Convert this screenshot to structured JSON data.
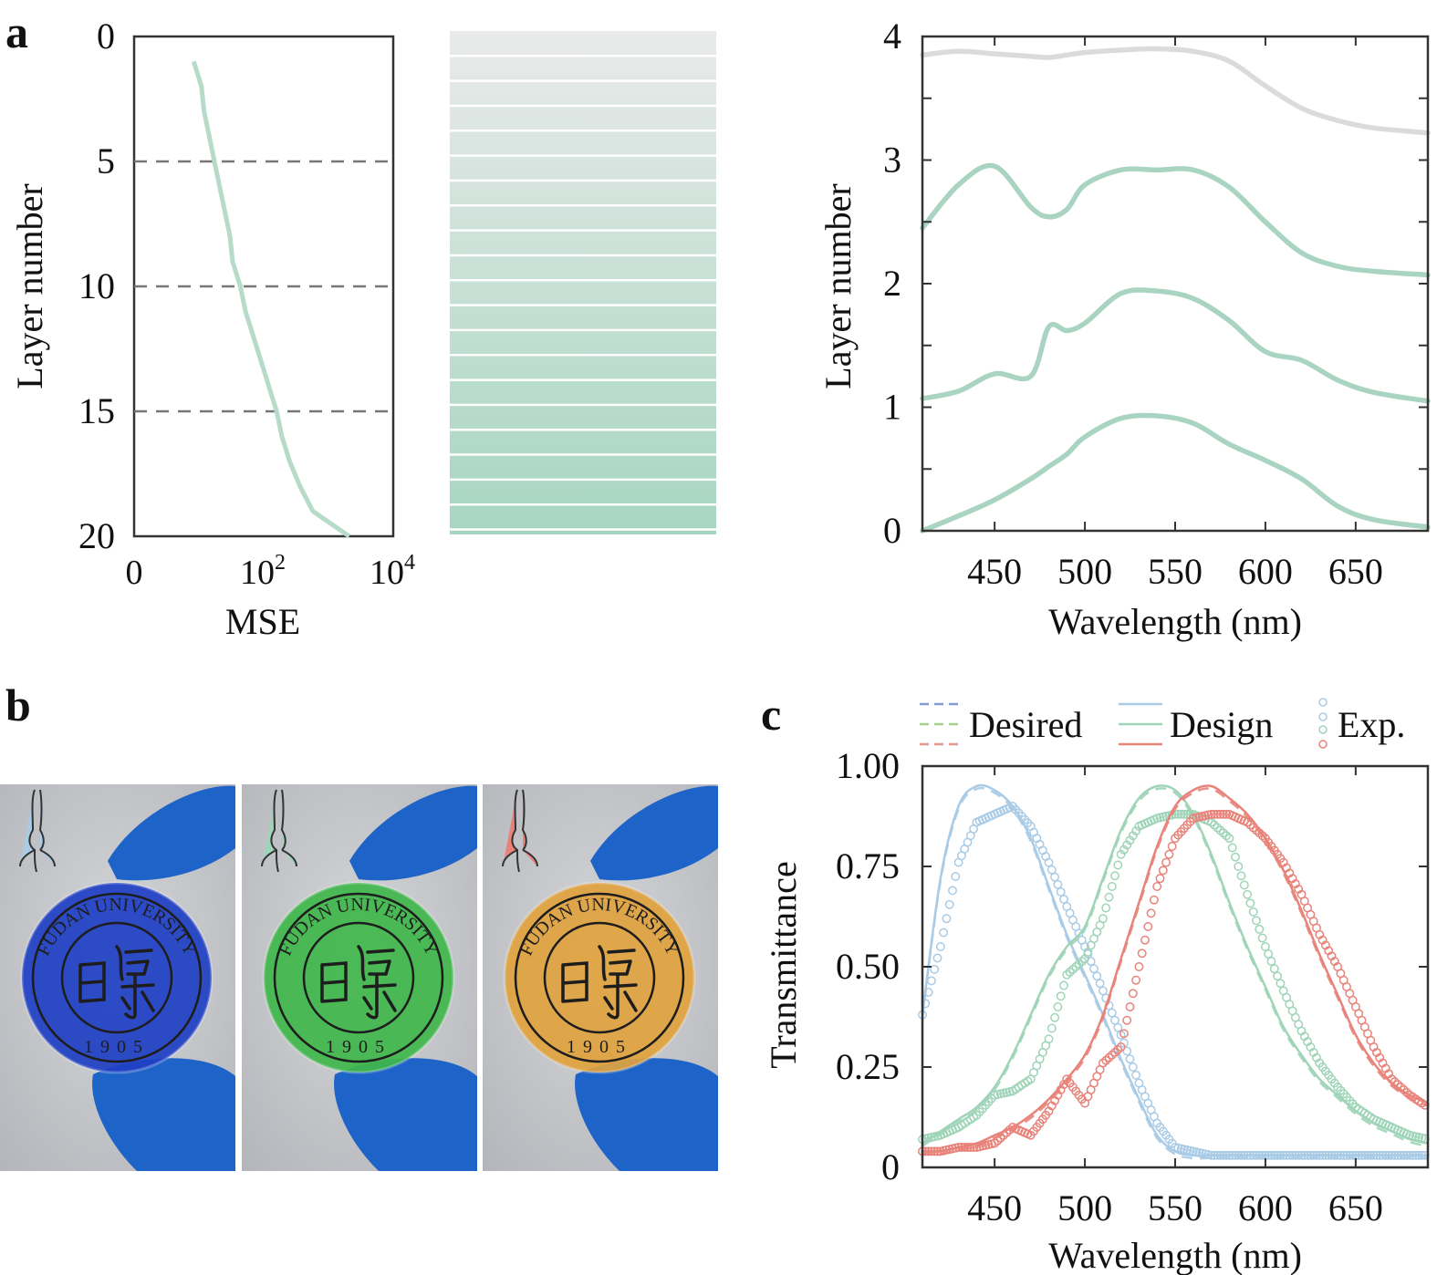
{
  "panels": {
    "a": "a",
    "b": "b",
    "c": "c"
  },
  "colors": {
    "curve_a": "#b6dcc9",
    "layer_top": "#eaeceb",
    "layer_bottom": "#a6d6c1",
    "stack_gray": "#d9dcdb",
    "stack_green": "#a9d4c1",
    "blue": "#a9cbe6",
    "green": "#9fd4b8",
    "red": "#e8837a",
    "glove": "#1e63c8",
    "bg_photo": "#c9cbcf"
  },
  "chart_data": [
    {
      "type": "line",
      "id": "mse_vs_layer",
      "xlabel": "MSE",
      "ylabel": "Layer number",
      "x_scale": "log-like",
      "x_ticks": [
        "0",
        "10^2",
        "10^4"
      ],
      "y_ticks": [
        "0",
        "5",
        "10",
        "15",
        "20"
      ],
      "ylim": [
        0,
        20
      ],
      "y_inverted": true,
      "dashed_gridlines_at": [
        5,
        10,
        15
      ],
      "series": [
        {
          "x": [
            0.23,
            0.26,
            0.27,
            0.29,
            0.31,
            0.33,
            0.35,
            0.37,
            0.38,
            0.41,
            0.43,
            0.46,
            0.49,
            0.52,
            0.55,
            0.57,
            0.6,
            0.64,
            0.69,
            0.76,
            0.83
          ],
          "y": [
            1,
            2,
            3,
            4,
            5,
            6,
            7,
            8,
            9,
            10,
            11,
            12,
            13,
            14,
            15,
            16,
            17,
            18,
            19,
            19.5,
            20
          ]
        }
      ]
    },
    {
      "type": "heatmap",
      "id": "layer_stack",
      "layers": 20
    },
    {
      "type": "line",
      "id": "stacked_spectra",
      "xlabel": "Wavelength (nm)",
      "ylabel": "Layer number",
      "x_ticks": [
        450,
        500,
        550,
        600,
        650
      ],
      "y_ticks": [
        0,
        1,
        2,
        3,
        4
      ],
      "xlim": [
        410,
        690
      ],
      "ylim": [
        0,
        4
      ],
      "x": [
        410,
        430,
        450,
        470,
        480,
        490,
        500,
        520,
        540,
        560,
        580,
        600,
        620,
        640,
        660,
        690
      ],
      "series": [
        {
          "values": [
            3.85,
            3.88,
            3.86,
            3.84,
            3.83,
            3.85,
            3.87,
            3.89,
            3.9,
            3.88,
            3.8,
            3.6,
            3.42,
            3.32,
            3.26,
            3.22
          ]
        },
        {
          "values": [
            2.45,
            2.8,
            2.95,
            2.62,
            2.54,
            2.6,
            2.8,
            2.92,
            2.92,
            2.92,
            2.78,
            2.5,
            2.25,
            2.14,
            2.1,
            2.07
          ]
        },
        {
          "values": [
            1.07,
            1.13,
            1.27,
            1.25,
            1.65,
            1.62,
            1.68,
            1.92,
            1.94,
            1.88,
            1.7,
            1.45,
            1.38,
            1.22,
            1.12,
            1.05
          ]
        },
        {
          "values": [
            0.0,
            0.12,
            0.25,
            0.42,
            0.52,
            0.62,
            0.76,
            0.91,
            0.93,
            0.87,
            0.7,
            0.57,
            0.42,
            0.2,
            0.09,
            0.03
          ]
        }
      ]
    },
    {
      "type": "line",
      "id": "transmittance",
      "xlabel": "Wavelength (nm)",
      "ylabel": "Transmittance",
      "x_ticks": [
        450,
        500,
        550,
        600,
        650
      ],
      "y_ticks": [
        "0",
        "0.25",
        "0.50",
        "0.75",
        "1.00"
      ],
      "xlim": [
        410,
        690
      ],
      "ylim": [
        0,
        1
      ],
      "legend": [
        "Desired",
        "Design",
        "Exp."
      ],
      "x": [
        410,
        420,
        430,
        440,
        450,
        460,
        470,
        480,
        490,
        500,
        510,
        520,
        530,
        540,
        550,
        560,
        570,
        580,
        590,
        600,
        610,
        620,
        630,
        640,
        650,
        660,
        670,
        680,
        690
      ],
      "series": [
        {
          "color": "blue",
          "design": [
            0.38,
            0.72,
            0.9,
            0.95,
            0.94,
            0.9,
            0.82,
            0.7,
            0.58,
            0.48,
            0.38,
            0.27,
            0.17,
            0.08,
            0.04,
            0.03,
            0.03,
            0.03,
            0.03,
            0.03,
            0.03,
            0.03,
            0.03,
            0.03,
            0.03,
            0.03,
            0.03,
            0.03,
            0.03
          ],
          "exp": [
            0.38,
            0.55,
            0.76,
            0.86,
            0.88,
            0.9,
            0.85,
            0.76,
            0.65,
            0.55,
            0.44,
            0.33,
            0.21,
            0.11,
            0.05,
            0.04,
            0.03,
            0.03,
            0.03,
            0.03,
            0.03,
            0.03,
            0.03,
            0.03,
            0.03,
            0.03,
            0.03,
            0.03,
            0.03
          ]
        },
        {
          "color": "green",
          "design": [
            0.06,
            0.09,
            0.12,
            0.15,
            0.2,
            0.28,
            0.38,
            0.48,
            0.55,
            0.6,
            0.72,
            0.84,
            0.92,
            0.95,
            0.94,
            0.88,
            0.78,
            0.66,
            0.55,
            0.45,
            0.35,
            0.28,
            0.22,
            0.18,
            0.14,
            0.11,
            0.09,
            0.07,
            0.06
          ],
          "exp": [
            0.07,
            0.08,
            0.1,
            0.13,
            0.18,
            0.19,
            0.22,
            0.32,
            0.48,
            0.52,
            0.62,
            0.78,
            0.85,
            0.87,
            0.88,
            0.88,
            0.86,
            0.82,
            0.68,
            0.55,
            0.44,
            0.34,
            0.26,
            0.2,
            0.15,
            0.12,
            0.1,
            0.08,
            0.07
          ]
        },
        {
          "color": "red",
          "design": [
            0.04,
            0.04,
            0.05,
            0.06,
            0.08,
            0.1,
            0.13,
            0.17,
            0.22,
            0.28,
            0.38,
            0.52,
            0.66,
            0.8,
            0.9,
            0.94,
            0.95,
            0.92,
            0.88,
            0.82,
            0.74,
            0.64,
            0.53,
            0.43,
            0.33,
            0.26,
            0.21,
            0.18,
            0.16
          ],
          "exp": [
            0.04,
            0.04,
            0.05,
            0.05,
            0.06,
            0.1,
            0.08,
            0.14,
            0.22,
            0.16,
            0.26,
            0.3,
            0.5,
            0.7,
            0.82,
            0.87,
            0.88,
            0.88,
            0.86,
            0.82,
            0.76,
            0.68,
            0.58,
            0.5,
            0.4,
            0.3,
            0.22,
            0.18,
            0.15
          ]
        }
      ]
    }
  ],
  "photos": [
    {
      "tint": "#1f3fc4",
      "icon_color": "#a9cbe6",
      "ring_text": "FUDAN UNIVERSITY",
      "year": "1905"
    },
    {
      "tint": "#3fb64a",
      "icon_color": "#9fd4b8",
      "ring_text": "FUDAN UNIVERSITY",
      "year": "1905"
    },
    {
      "tint": "#e0a23e",
      "icon_color": "#e8837a",
      "ring_text": "FUDAN UNIVERSITY",
      "year": "1905"
    }
  ]
}
